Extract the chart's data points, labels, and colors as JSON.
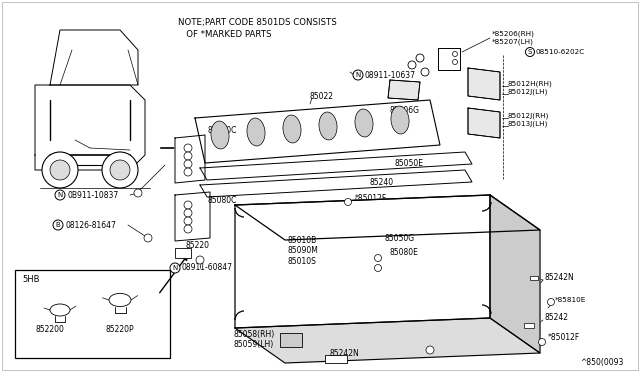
{
  "bg_color": "#ffffff",
  "line_color": "#000000",
  "text_color": "#000000",
  "fig_width": 6.4,
  "fig_height": 3.72,
  "dpi": 100,
  "diagram_ref": "^850(0093",
  "note_line1": "NOTE;PART CODE 8501DS CONSISTS",
  "note_line2": "   OF *MARKED PARTS"
}
